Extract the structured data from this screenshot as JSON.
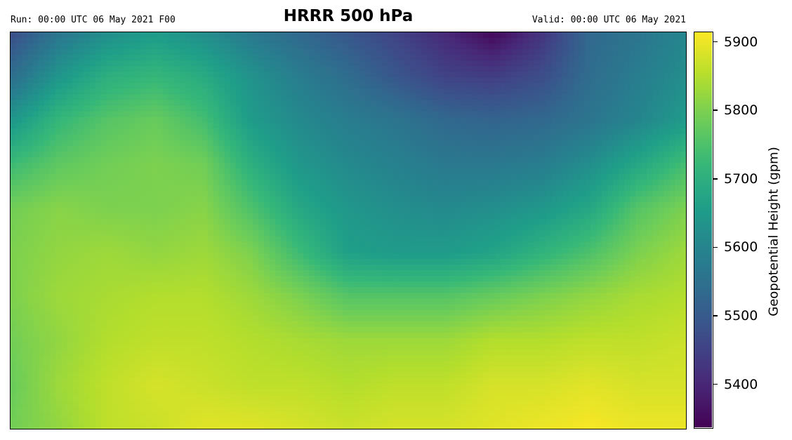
{
  "header": {
    "run": "Run: 00:00 UTC 06 May 2021 F00",
    "title": "HRRR 500 hPa",
    "valid": "Valid: 00:00 UTC 06 May 2021"
  },
  "chart_data": {
    "type": "heatmap",
    "title": "HRRR 500 hPa",
    "xlabel": "",
    "ylabel": "",
    "colormap": "viridis",
    "colorbar": {
      "label": "Geopotential Height (gpm)",
      "range": [
        5335,
        5915
      ],
      "ticks": [
        5400,
        5500,
        5600,
        5700,
        5800,
        5900
      ],
      "tick_labels": [
        "5400",
        "5500",
        "5600",
        "5700",
        "5800",
        "5900"
      ]
    },
    "grid_shape": [
      10,
      15
    ],
    "values": [
      [
        5470,
        5560,
        5620,
        5650,
        5620,
        5570,
        5530,
        5490,
        5450,
        5400,
        5345,
        5420,
        5530,
        5560,
        5600
      ],
      [
        5540,
        5640,
        5700,
        5720,
        5690,
        5630,
        5580,
        5540,
        5490,
        5450,
        5440,
        5470,
        5540,
        5580,
        5620
      ],
      [
        5640,
        5720,
        5760,
        5780,
        5740,
        5650,
        5610,
        5580,
        5560,
        5530,
        5520,
        5530,
        5560,
        5600,
        5650
      ],
      [
        5730,
        5770,
        5790,
        5800,
        5790,
        5700,
        5640,
        5610,
        5590,
        5570,
        5570,
        5580,
        5620,
        5680,
        5740
      ],
      [
        5790,
        5810,
        5800,
        5800,
        5810,
        5750,
        5680,
        5640,
        5620,
        5610,
        5620,
        5640,
        5680,
        5760,
        5800
      ],
      [
        5800,
        5820,
        5830,
        5820,
        5830,
        5800,
        5730,
        5660,
        5650,
        5650,
        5670,
        5710,
        5750,
        5800,
        5830
      ],
      [
        5800,
        5830,
        5840,
        5850,
        5850,
        5830,
        5800,
        5760,
        5760,
        5760,
        5780,
        5800,
        5820,
        5840,
        5850
      ],
      [
        5790,
        5820,
        5850,
        5860,
        5860,
        5850,
        5840,
        5830,
        5830,
        5830,
        5850,
        5850,
        5860,
        5860,
        5870
      ],
      [
        5780,
        5830,
        5860,
        5880,
        5870,
        5860,
        5860,
        5850,
        5860,
        5860,
        5880,
        5880,
        5890,
        5880,
        5880
      ],
      [
        5790,
        5820,
        5860,
        5870,
        5890,
        5890,
        5880,
        5870,
        5880,
        5880,
        5890,
        5900,
        5910,
        5900,
        5900
      ]
    ]
  }
}
